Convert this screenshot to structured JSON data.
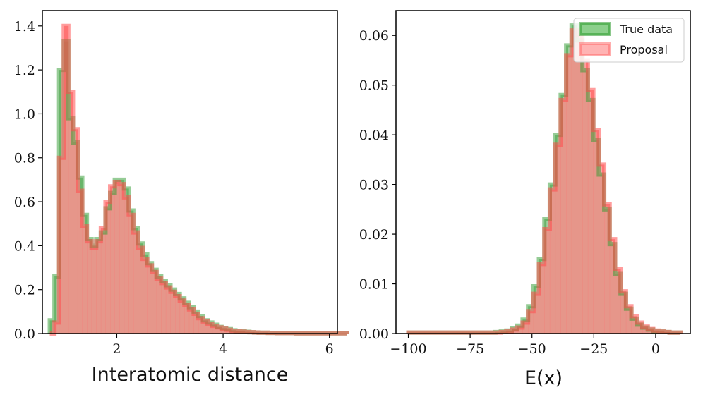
{
  "chart_data": [
    {
      "type": "histogram",
      "xlabel": "Interatomic distance",
      "ylabel": "",
      "xlim": [
        0.6,
        6.15
      ],
      "ylim": [
        0,
        1.47
      ],
      "xticks": [
        2,
        4,
        6
      ],
      "xtick_labels": [
        "2",
        "4",
        "6"
      ],
      "yticks": [
        0.0,
        0.2,
        0.4,
        0.6,
        0.8,
        1.0,
        1.2,
        1.4
      ],
      "ytick_labels": [
        "0.0",
        "0.2",
        "0.4",
        "0.6",
        "0.8",
        "1.0",
        "1.2",
        "1.4"
      ],
      "bin_edges_start": 0.74,
      "bin_width": 0.0873,
      "series": [
        {
          "name": "True data",
          "color": "#2e9a2e",
          "values": [
            0.06,
            0.26,
            1.2,
            1.33,
            0.98,
            0.87,
            0.71,
            0.54,
            0.43,
            0.4,
            0.43,
            0.46,
            0.57,
            0.64,
            0.7,
            0.7,
            0.66,
            0.56,
            0.48,
            0.41,
            0.36,
            0.32,
            0.29,
            0.26,
            0.24,
            0.22,
            0.2,
            0.18,
            0.16,
            0.14,
            0.12,
            0.1,
            0.08,
            0.06,
            0.05,
            0.04,
            0.03,
            0.025,
            0.02,
            0.015,
            0.012,
            0.01,
            0.008,
            0.006,
            0.005,
            0.004,
            0.004,
            0.003,
            0.003,
            0.002,
            0.002,
            0.002,
            0.002,
            0.001,
            0.001,
            0.001,
            0.001,
            0.001,
            0.001,
            0.001,
            0.001,
            0.001,
            0.001,
            0.001
          ]
        },
        {
          "name": "Proposal",
          "color": "#ff6b6b",
          "values": [
            0.0,
            0.05,
            0.8,
            1.4,
            1.1,
            0.93,
            0.65,
            0.49,
            0.42,
            0.39,
            0.42,
            0.48,
            0.6,
            0.67,
            0.69,
            0.68,
            0.62,
            0.54,
            0.46,
            0.39,
            0.34,
            0.31,
            0.28,
            0.25,
            0.23,
            0.21,
            0.19,
            0.17,
            0.15,
            0.13,
            0.11,
            0.09,
            0.07,
            0.055,
            0.045,
            0.035,
            0.028,
            0.022,
            0.017,
            0.013,
            0.011,
            0.009,
            0.007,
            0.006,
            0.005,
            0.004,
            0.004,
            0.003,
            0.003,
            0.002,
            0.002,
            0.002,
            0.002,
            0.001,
            0.001,
            0.001,
            0.001,
            0.001,
            0.001,
            0.001,
            0.001,
            0.001,
            0.001,
            0.001
          ]
        }
      ]
    },
    {
      "type": "histogram",
      "xlabel": "E(x)",
      "ylabel": "",
      "xlim": [
        -105,
        14
      ],
      "ylim": [
        0,
        0.065
      ],
      "xticks": [
        -100,
        -75,
        -50,
        -25,
        0
      ],
      "xtick_labels": [
        "−100",
        "−75",
        "−50",
        "−25",
        "0"
      ],
      "yticks": [
        0.0,
        0.01,
        0.02,
        0.03,
        0.04,
        0.05,
        0.06
      ],
      "ytick_labels": [
        "0.00",
        "0.01",
        "0.02",
        "0.03",
        "0.04",
        "0.05",
        "0.06"
      ],
      "bin_edges_start": -100,
      "bin_width": 2.2,
      "legend": {
        "position": "upper right",
        "entries": [
          "True data",
          "Proposal"
        ]
      },
      "series": [
        {
          "name": "True data",
          "color": "#2e9a2e",
          "values": [
            0.0002,
            0.0002,
            0.0002,
            0.0002,
            0.0002,
            0.0002,
            0.0002,
            0.0002,
            0.0002,
            0.0002,
            0.0002,
            0.0002,
            0.0002,
            0.0002,
            0.0002,
            0.0002,
            0.0003,
            0.0004,
            0.0006,
            0.001,
            0.0016,
            0.0028,
            0.0055,
            0.0095,
            0.015,
            0.023,
            0.03,
            0.04,
            0.048,
            0.058,
            0.062,
            0.059,
            0.053,
            0.047,
            0.039,
            0.032,
            0.025,
            0.018,
            0.012,
            0.008,
            0.005,
            0.003,
            0.0018,
            0.0012,
            0.0008,
            0.0005,
            0.0004,
            0.0003,
            0.0002,
            0.0002
          ]
        },
        {
          "name": "Proposal",
          "color": "#ff6b6b",
          "values": [
            0.0002,
            0.0002,
            0.0002,
            0.0002,
            0.0002,
            0.0002,
            0.0002,
            0.0002,
            0.0002,
            0.0002,
            0.0002,
            0.0002,
            0.0002,
            0.0002,
            0.0002,
            0.0002,
            0.0002,
            0.0003,
            0.0005,
            0.0008,
            0.0012,
            0.0022,
            0.0045,
            0.008,
            0.014,
            0.021,
            0.029,
            0.038,
            0.047,
            0.056,
            0.061,
            0.06,
            0.055,
            0.049,
            0.041,
            0.034,
            0.026,
            0.019,
            0.013,
            0.0085,
            0.0055,
            0.0035,
            0.0022,
            0.0014,
            0.0009,
            0.0006,
            0.0004,
            0.0003,
            0.0002,
            0.0002
          ]
        }
      ]
    }
  ]
}
